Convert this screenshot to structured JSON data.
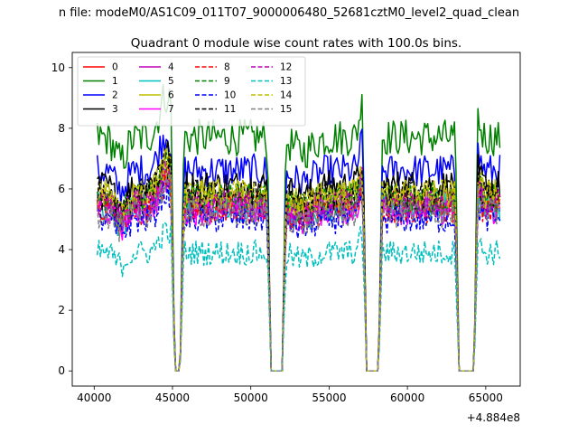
{
  "chart_data": {
    "type": "line",
    "suptitle": "n file: modeM0/AS1C09_011T07_9000006480_52681cztM0_level2_quad_clean",
    "title": "Quadrant 0 module wise count rates with 100.0s bins.",
    "xlabel": "",
    "ylabel": "",
    "x_offset_label": "+4.884e8",
    "xlim": [
      38600,
      67200
    ],
    "ylim": [
      -0.5,
      10.5
    ],
    "x_ticks": [
      40000,
      45000,
      50000,
      55000,
      60000,
      65000
    ],
    "x_tick_labels": [
      "40000",
      "45000",
      "50000",
      "55000",
      "60000",
      "65000"
    ],
    "y_ticks": [
      0,
      2,
      4,
      6,
      8,
      10
    ],
    "y_tick_labels": [
      "0",
      "2",
      "4",
      "6",
      "8",
      "10"
    ],
    "x_start": 40200,
    "x_end": 65900,
    "bin_seconds": 100,
    "gaps": [
      [
        45150,
        45480
      ],
      [
        51300,
        52000
      ],
      [
        57400,
        58150
      ],
      [
        63300,
        64250
      ]
    ],
    "legend_loc": "upper left",
    "grid": false,
    "series": [
      {
        "name": "0",
        "mean": 5.5,
        "color": "#ff0000",
        "dash": "solid"
      },
      {
        "name": "1",
        "mean": 7.7,
        "color": "#008000",
        "dash": "solid"
      },
      {
        "name": "2",
        "mean": 6.6,
        "color": "#0000ff",
        "dash": "solid"
      },
      {
        "name": "3",
        "mean": 6.1,
        "color": "#000000",
        "dash": "solid"
      },
      {
        "name": "4",
        "mean": 5.5,
        "color": "#bf00bf",
        "dash": "solid"
      },
      {
        "name": "5",
        "mean": 5.4,
        "color": "#00bfbf",
        "dash": "solid"
      },
      {
        "name": "6",
        "mean": 5.8,
        "color": "#bfbf00",
        "dash": "solid"
      },
      {
        "name": "7",
        "mean": 5.3,
        "color": "#ff00ff",
        "dash": "solid"
      },
      {
        "name": "8",
        "mean": 5.3,
        "color": "#ff0000",
        "dash": "dashed"
      },
      {
        "name": "9",
        "mean": 5.7,
        "color": "#008000",
        "dash": "dashed"
      },
      {
        "name": "10",
        "mean": 5.0,
        "color": "#0000ff",
        "dash": "dashed"
      },
      {
        "name": "11",
        "mean": 5.8,
        "color": "#000000",
        "dash": "dashed"
      },
      {
        "name": "12",
        "mean": 5.5,
        "color": "#bf00bf",
        "dash": "dashed"
      },
      {
        "name": "13",
        "mean": 3.9,
        "color": "#00bfbf",
        "dash": "dashed"
      },
      {
        "name": "14",
        "mean": 5.8,
        "color": "#bfbf00",
        "dash": "dashed"
      },
      {
        "name": "15",
        "mean": 5.2,
        "color": "#808080",
        "dash": "dashed"
      }
    ]
  }
}
